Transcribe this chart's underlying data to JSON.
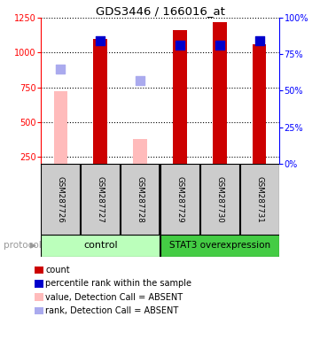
{
  "title": "GDS3446 / 166016_at",
  "samples": [
    "GSM287726",
    "GSM287727",
    "GSM287728",
    "GSM287729",
    "GSM287730",
    "GSM287731"
  ],
  "count_values": [
    720,
    1100,
    380,
    1160,
    1220,
    1060
  ],
  "count_absent": [
    true,
    false,
    true,
    false,
    false,
    false
  ],
  "rank_pcts": [
    65,
    84,
    57,
    81,
    81,
    84
  ],
  "rank_absent": [
    true,
    false,
    true,
    false,
    false,
    false
  ],
  "ylim_left": [
    200,
    1250
  ],
  "ylim_right": [
    0,
    100
  ],
  "yticks_left": [
    250,
    500,
    750,
    1000,
    1250
  ],
  "yticks_right": [
    0,
    25,
    50,
    75,
    100
  ],
  "bar_color_present": "#cc0000",
  "bar_color_absent": "#ffbbbb",
  "rank_color_present": "#0000cc",
  "rank_color_absent": "#aaaaee",
  "bar_width": 0.35,
  "rank_marker_size": 50,
  "sample_box_color": "#cccccc",
  "legend_items": [
    {
      "label": "count",
      "color": "#cc0000"
    },
    {
      "label": "percentile rank within the sample",
      "color": "#0000cc"
    },
    {
      "label": "value, Detection Call = ABSENT",
      "color": "#ffbbbb"
    },
    {
      "label": "rank, Detection Call = ABSENT",
      "color": "#aaaaee"
    }
  ]
}
